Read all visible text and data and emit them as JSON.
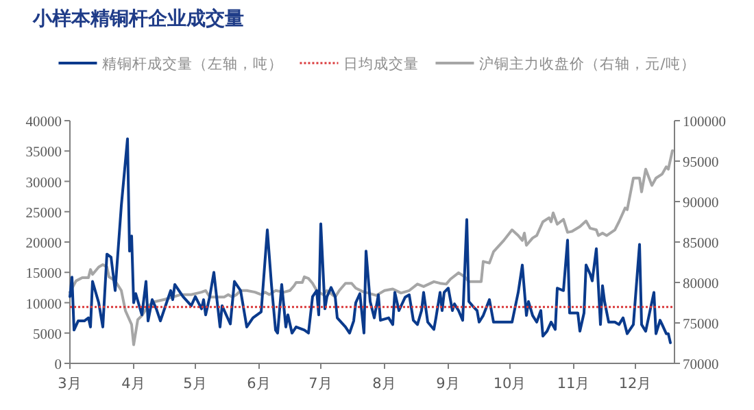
{
  "chart_data": {
    "type": "line",
    "title": "小样本精铜杆企业成交量",
    "legend": "top",
    "grid": false,
    "xlim": [
      "--03-01",
      "--12-20"
    ],
    "xticks": [
      {
        "value": "--03-01",
        "label": "3月"
      },
      {
        "value": "--04-01",
        "label": "4月"
      },
      {
        "value": "--05-01",
        "label": "5月"
      },
      {
        "value": "--06-01",
        "label": "6月"
      },
      {
        "value": "--07-01",
        "label": "7月"
      },
      {
        "value": "--08-01",
        "label": "8月"
      },
      {
        "value": "--09-01",
        "label": "9月"
      },
      {
        "value": "--10-01",
        "label": "10月"
      },
      {
        "value": "--11-01",
        "label": "11月"
      },
      {
        "value": "--12-01",
        "label": "12月"
      }
    ],
    "ylim": [
      0,
      40000
    ],
    "yticks": [
      0,
      5000,
      10000,
      15000,
      20000,
      25000,
      30000,
      35000,
      40000
    ],
    "y2lim": [
      70000,
      100000
    ],
    "y2ticks": [
      70000,
      75000,
      80000,
      85000,
      90000,
      95000,
      100000
    ],
    "ref_lines": [
      {
        "axis": "y",
        "value": 9300,
        "label": "日均成交量",
        "color": "#d9383a",
        "line_style": "dotted"
      }
    ],
    "series": [
      {
        "name": "精铜杆成交量（左轴，吨）",
        "color": "#0a3a8c",
        "x": [
          "--03-01",
          "--03-02",
          "--03-03",
          "--03-05",
          "--03-08",
          "--03-10",
          "--03-11",
          "--03-12",
          "--03-15",
          "--03-17",
          "--03-19",
          "--03-21",
          "--03-23",
          "--03-26",
          "--03-29",
          "--03-30",
          "--03-31",
          "--04-01",
          "--04-02",
          "--04-05",
          "--04-07",
          "--04-08",
          "--04-10",
          "--04-12",
          "--04-14",
          "--04-17",
          "--04-19",
          "--04-20",
          "--04-21",
          "--04-25",
          "--04-29",
          "--05-01",
          "--05-04",
          "--05-05",
          "--05-06",
          "--05-08",
          "--05-10",
          "--05-13",
          "--05-14",
          "--05-18",
          "--05-20",
          "--05-23",
          "--05-26",
          "--05-29",
          "--06-02",
          "--06-05",
          "--06-07",
          "--06-09",
          "--06-10",
          "--06-12",
          "--06-14",
          "--06-15",
          "--06-17",
          "--06-19",
          "--06-23",
          "--06-25",
          "--06-27",
          "--06-29",
          "--06-30",
          "--07-01",
          "--07-03",
          "--07-04",
          "--07-06",
          "--07-08",
          "--07-09",
          "--07-13",
          "--07-15",
          "--07-17",
          "--07-18",
          "--07-20",
          "--07-22",
          "--07-23",
          "--07-25",
          "--07-27",
          "--07-29",
          "--07-30",
          "--08-03",
          "--08-05",
          "--08-06",
          "--08-08",
          "--08-11",
          "--08-13",
          "--08-15",
          "--08-17",
          "--08-19",
          "--08-20",
          "--08-22",
          "--08-25",
          "--08-26",
          "--08-28",
          "--08-29",
          "--08-30",
          "--09-01",
          "--09-03",
          "--09-04",
          "--09-06",
          "--09-08",
          "--09-10",
          "--09-11",
          "--09-13",
          "--09-15",
          "--09-16",
          "--09-18",
          "--09-21",
          "--09-23",
          "--10-02",
          "--10-05",
          "--10-07",
          "--10-09",
          "--10-10",
          "--10-12",
          "--10-14",
          "--10-16",
          "--10-17",
          "--10-19",
          "--10-21",
          "--10-23",
          "--10-24",
          "--10-27",
          "--10-29",
          "--10-30",
          "--11-03",
          "--11-04",
          "--11-06",
          "--11-07",
          "--11-09",
          "--11-10",
          "--11-12",
          "--11-14",
          "--11-15",
          "--11-16",
          "--11-18",
          "--11-21",
          "--11-23",
          "--11-25",
          "--11-27",
          "--11-30",
          "--12-03",
          "--12-04",
          "--12-06",
          "--12-10",
          "--12-11",
          "--12-13",
          "--12-14",
          "--12-16",
          "--12-17",
          "--12-18"
        ],
        "values": [
          11000,
          14200,
          5500,
          7000,
          7000,
          7500,
          6000,
          13500,
          10000,
          6000,
          18000,
          17500,
          12000,
          26000,
          37000,
          18500,
          21000,
          10000,
          11500,
          8000,
          13500,
          7000,
          10500,
          9000,
          7000,
          10000,
          12000,
          10500,
          13000,
          11000,
          9500,
          11000,
          9000,
          10500,
          8000,
          11000,
          15000,
          6000,
          9500,
          6500,
          13500,
          12000,
          6000,
          7500,
          8500,
          22000,
          13000,
          5500,
          5000,
          13000,
          6000,
          8000,
          5000,
          6000,
          5500,
          5000,
          11000,
          12000,
          8000,
          23000,
          9000,
          11000,
          12500,
          11000,
          7500,
          6000,
          5000,
          7000,
          10000,
          11500,
          5000,
          18500,
          10200,
          7500,
          11300,
          7100,
          7500,
          6400,
          11700,
          8700,
          10900,
          11300,
          7100,
          6400,
          8700,
          11700,
          6800,
          5600,
          7500,
          11700,
          8700,
          11700,
          12400,
          8700,
          9800,
          8700,
          7100,
          23700,
          10200,
          9400,
          8700,
          6800,
          7900,
          10500,
          6800,
          6800,
          11700,
          16200,
          7900,
          10200,
          7900,
          6800,
          8700,
          4500,
          5300,
          6800,
          5600,
          12400,
          12000,
          20300,
          8300,
          8300,
          5300,
          8300,
          16200,
          14700,
          13600,
          18900,
          6400,
          12800,
          10200,
          6800,
          6800,
          6400,
          7500,
          4900,
          6400,
          19600,
          6400,
          5300,
          11700,
          4900,
          7100,
          6400,
          4900,
          4900,
          3400
        ]
      },
      {
        "name": "沪铜主力收盘价（右轴，元/吨）",
        "color": "#a6a6a6",
        "axis": "y2",
        "x": [
          "--03-01",
          "--03-04",
          "--03-07",
          "--03-10",
          "--03-11",
          "--03-12",
          "--03-15",
          "--03-17",
          "--03-19",
          "--03-20",
          "--03-23",
          "--03-26",
          "--03-28",
          "--03-31",
          "--04-01",
          "--04-03",
          "--04-05",
          "--04-08",
          "--04-11",
          "--04-16",
          "--04-20",
          "--04-24",
          "--04-29",
          "--05-04",
          "--05-06",
          "--05-08",
          "--05-11",
          "--05-15",
          "--05-17",
          "--05-19",
          "--05-21",
          "--05-23",
          "--05-26",
          "--05-30",
          "--06-02",
          "--06-04",
          "--06-06",
          "--06-09",
          "--06-13",
          "--06-16",
          "--06-18",
          "--06-19",
          "--06-22",
          "--06-23",
          "--06-25",
          "--06-27",
          "--06-29",
          "--07-02",
          "--07-04",
          "--07-08",
          "--07-10",
          "--07-13",
          "--07-16",
          "--07-18",
          "--07-22",
          "--07-24",
          "--07-28",
          "--08-01",
          "--08-05",
          "--08-09",
          "--08-13",
          "--08-17",
          "--08-20",
          "--08-25",
          "--08-28",
          "--08-31",
          "--09-02",
          "--09-06",
          "--09-09",
          "--09-11",
          "--09-14",
          "--09-17",
          "--09-18",
          "--09-21",
          "--09-23",
          "--09-28",
          "--10-02",
          "--10-05",
          "--10-07",
          "--10-08",
          "--10-09",
          "--10-12",
          "--10-14",
          "--10-17",
          "--10-20",
          "--10-21",
          "--10-22",
          "--10-24",
          "--10-27",
          "--10-29",
          "--10-31",
          "--11-04",
          "--11-07",
          "--11-09",
          "--11-12",
          "--11-13",
          "--11-15",
          "--11-17",
          "--11-21",
          "--11-23",
          "--11-26",
          "--11-27",
          "--11-30",
          "--12-03",
          "--12-04",
          "--12-06",
          "--12-09",
          "--12-11",
          "--12-14",
          "--12-16",
          "--12-17",
          "--12-19"
        ],
        "values": [
          78800,
          80200,
          80600,
          80600,
          81600,
          81000,
          81900,
          82200,
          81900,
          80700,
          80200,
          79000,
          76500,
          74800,
          72300,
          75400,
          75900,
          77100,
          77600,
          77900,
          78200,
          78500,
          78500,
          78800,
          79000,
          78200,
          78200,
          78200,
          78500,
          78200,
          78500,
          79000,
          79000,
          78800,
          78500,
          78800,
          78500,
          79000,
          78800,
          79000,
          79600,
          80000,
          80000,
          80700,
          80500,
          79900,
          79000,
          78500,
          79000,
          78200,
          79000,
          79900,
          79900,
          79300,
          78800,
          78700,
          78400,
          79000,
          79200,
          78700,
          79000,
          79800,
          79500,
          80100,
          79900,
          79800,
          80400,
          81200,
          80700,
          80100,
          80100,
          80100,
          82600,
          82400,
          83800,
          85200,
          86500,
          85800,
          85200,
          86100,
          84600,
          85500,
          85800,
          87500,
          88000,
          87500,
          88600,
          87200,
          87800,
          86200,
          86300,
          86900,
          87600,
          86700,
          86500,
          85800,
          86100,
          85800,
          86500,
          87500,
          89200,
          89000,
          92900,
          92900,
          91200,
          94000,
          92000,
          92900,
          93400,
          94300,
          94000,
          96300
        ]
      }
    ]
  }
}
